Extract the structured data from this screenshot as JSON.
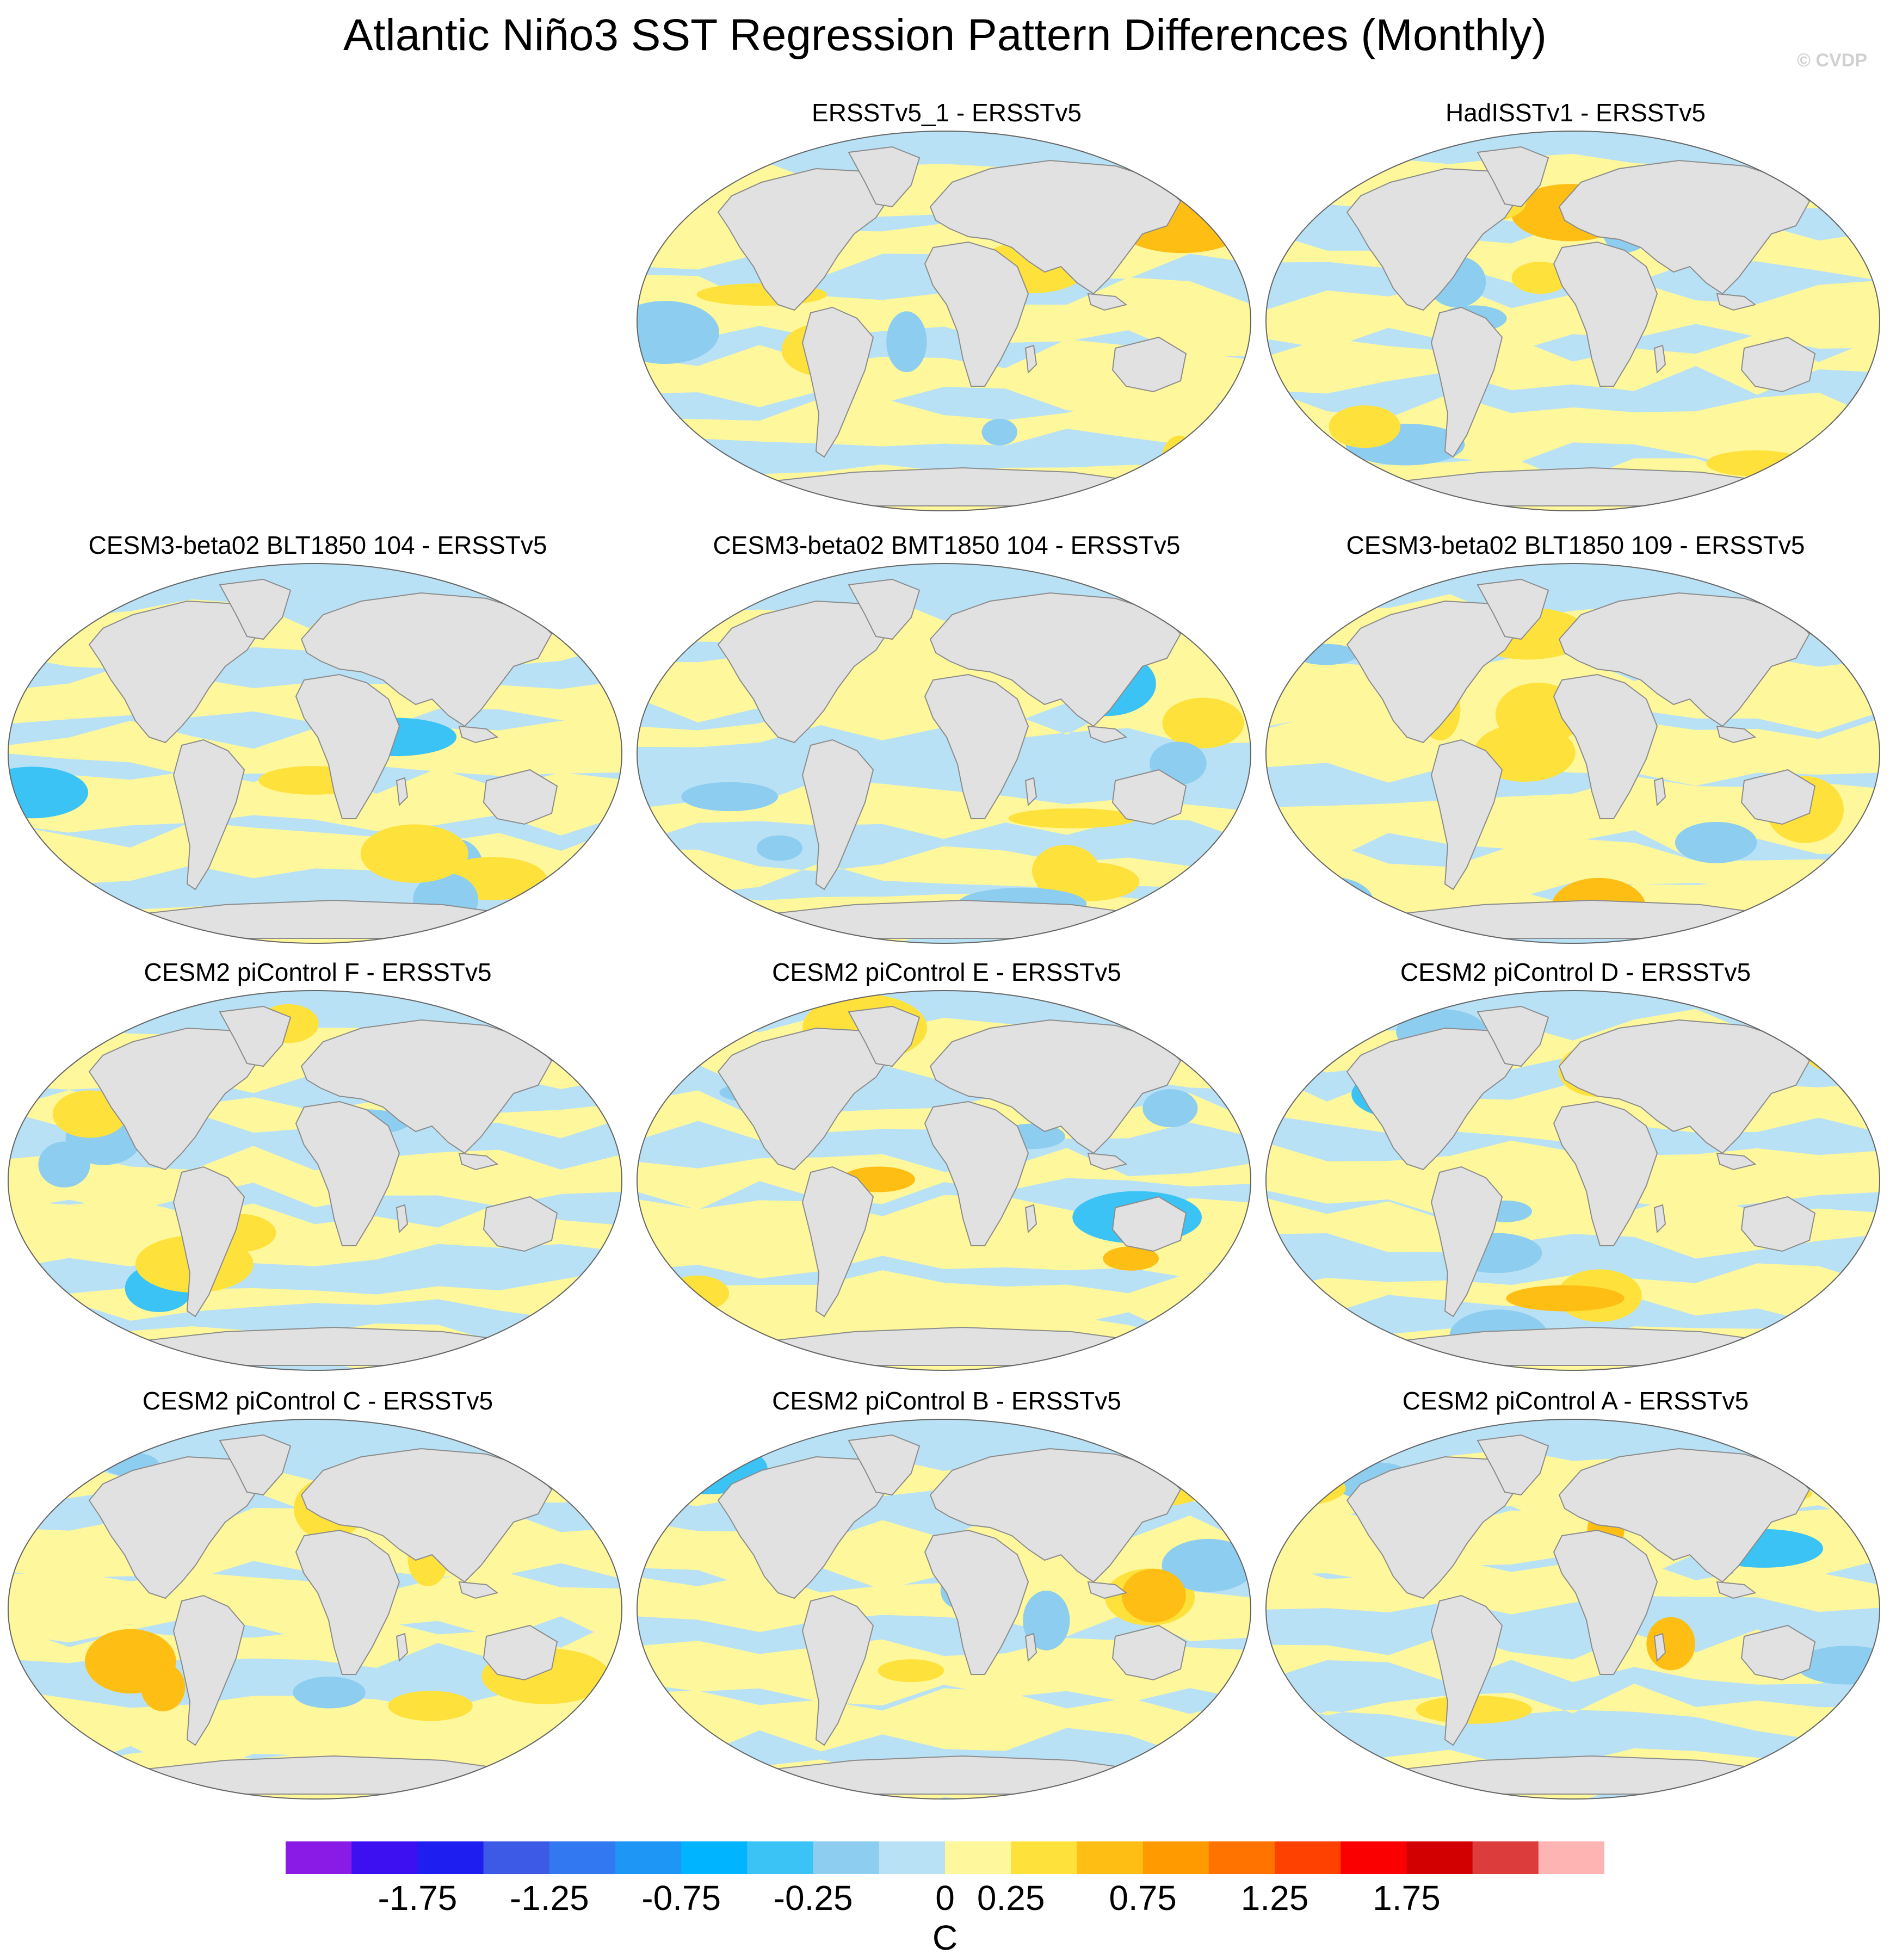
{
  "title": "Atlantic Niño3 SST Regression Pattern Differences (Monthly)",
  "watermark": "© CVDP",
  "panels": [
    {
      "label": "ERSSTv5_1 - ERSSTv5",
      "row": 0,
      "col": 1,
      "variant": 0
    },
    {
      "label": "HadISSTv1 - ERSSTv5",
      "row": 0,
      "col": 2,
      "variant": 1
    },
    {
      "label": "CESM3-beta02 BLT1850 104 - ERSSTv5",
      "row": 1,
      "col": 0,
      "variant": 2
    },
    {
      "label": "CESM3-beta02 BMT1850 104 - ERSSTv5",
      "row": 1,
      "col": 1,
      "variant": 3
    },
    {
      "label": "CESM3-beta02 BLT1850 109 - ERSSTv5",
      "row": 1,
      "col": 2,
      "variant": 4
    },
    {
      "label": "CESM2 piControl F - ERSSTv5",
      "row": 2,
      "col": 0,
      "variant": 5
    },
    {
      "label": "CESM2 piControl E - ERSSTv5",
      "row": 2,
      "col": 1,
      "variant": 6
    },
    {
      "label": "CESM2 piControl D - ERSSTv5",
      "row": 2,
      "col": 2,
      "variant": 7
    },
    {
      "label": "CESM2 piControl C - ERSSTv5",
      "row": 3,
      "col": 0,
      "variant": 8
    },
    {
      "label": "CESM2 piControl B - ERSSTv5",
      "row": 3,
      "col": 1,
      "variant": 9
    },
    {
      "label": "CESM2 piControl A - ERSSTv5",
      "row": 3,
      "col": 2,
      "variant": 10
    }
  ],
  "colorbar": {
    "unit": "C",
    "tick_labels": [
      "-1.75",
      "-1.25",
      "-0.75",
      "-0.25",
      "0",
      "0.25",
      "0.75",
      "1.25",
      "1.75"
    ],
    "tick_boundaries": [
      2,
      4,
      6,
      8,
      10,
      11,
      13,
      15,
      17
    ],
    "colors": [
      "#8a1be6",
      "#3c10f0",
      "#1e1ef0",
      "#3c5ae6",
      "#3278f0",
      "#1e96f5",
      "#00b4ff",
      "#3cc3f5",
      "#8ccdf0",
      "#b9e1f5",
      "#fff79b",
      "#ffe13c",
      "#ffbe14",
      "#ff9b00",
      "#ff7300",
      "#ff4100",
      "#fa0000",
      "#d20000",
      "#dc3c3c",
      "#ffb4b4"
    ]
  },
  "map_colors": {
    "land": "#e1e1e1",
    "coast": "#8c8c8c",
    "base_negative": "#b9e1f5",
    "base_positive": "#fff79b",
    "mid_negative": "#8ccdf0",
    "mid_positive": "#ffe13c",
    "strong_negative": "#3cc3f5",
    "strong_positive": "#ffbe14"
  }
}
